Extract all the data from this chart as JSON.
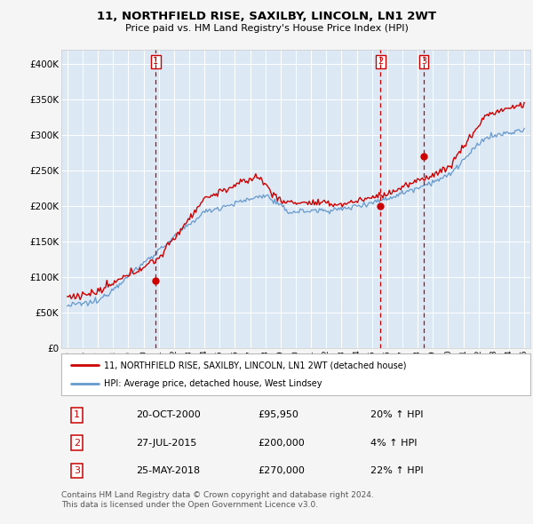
{
  "title": "11, NORTHFIELD RISE, SAXILBY, LINCOLN, LN1 2WT",
  "subtitle": "Price paid vs. HM Land Registry's House Price Index (HPI)",
  "fig_bg_color": "#f5f5f5",
  "plot_bg_color": "#dde8f5",
  "ylim": [
    0,
    420000
  ],
  "yticks": [
    0,
    50000,
    100000,
    150000,
    200000,
    250000,
    300000,
    350000,
    400000
  ],
  "ytick_labels": [
    "£0",
    "£50K",
    "£100K",
    "£150K",
    "£200K",
    "£250K",
    "£300K",
    "£350K",
    "£400K"
  ],
  "sale_dates_num": [
    2000.8,
    2015.57,
    2018.4
  ],
  "sale_prices": [
    95950,
    200000,
    270000
  ],
  "sale_labels": [
    "1",
    "2",
    "3"
  ],
  "vline_color": "#cc0000",
  "marker_color": "#cc0000",
  "red_color": "#cc0000",
  "blue_color": "#6699cc",
  "legend_text1": "11, NORTHFIELD RISE, SAXILBY, LINCOLN, LN1 2WT (detached house)",
  "legend_text2": "HPI: Average price, detached house, West Lindsey",
  "table_rows": [
    [
      "1",
      "20-OCT-2000",
      "£95,950",
      "20% ↑ HPI"
    ],
    [
      "2",
      "27-JUL-2015",
      "£200,000",
      "4% ↑ HPI"
    ],
    [
      "3",
      "25-MAY-2018",
      "£270,000",
      "22% ↑ HPI"
    ]
  ],
  "footer": "Contains HM Land Registry data © Crown copyright and database right 2024.\nThis data is licensed under the Open Government Licence v3.0."
}
